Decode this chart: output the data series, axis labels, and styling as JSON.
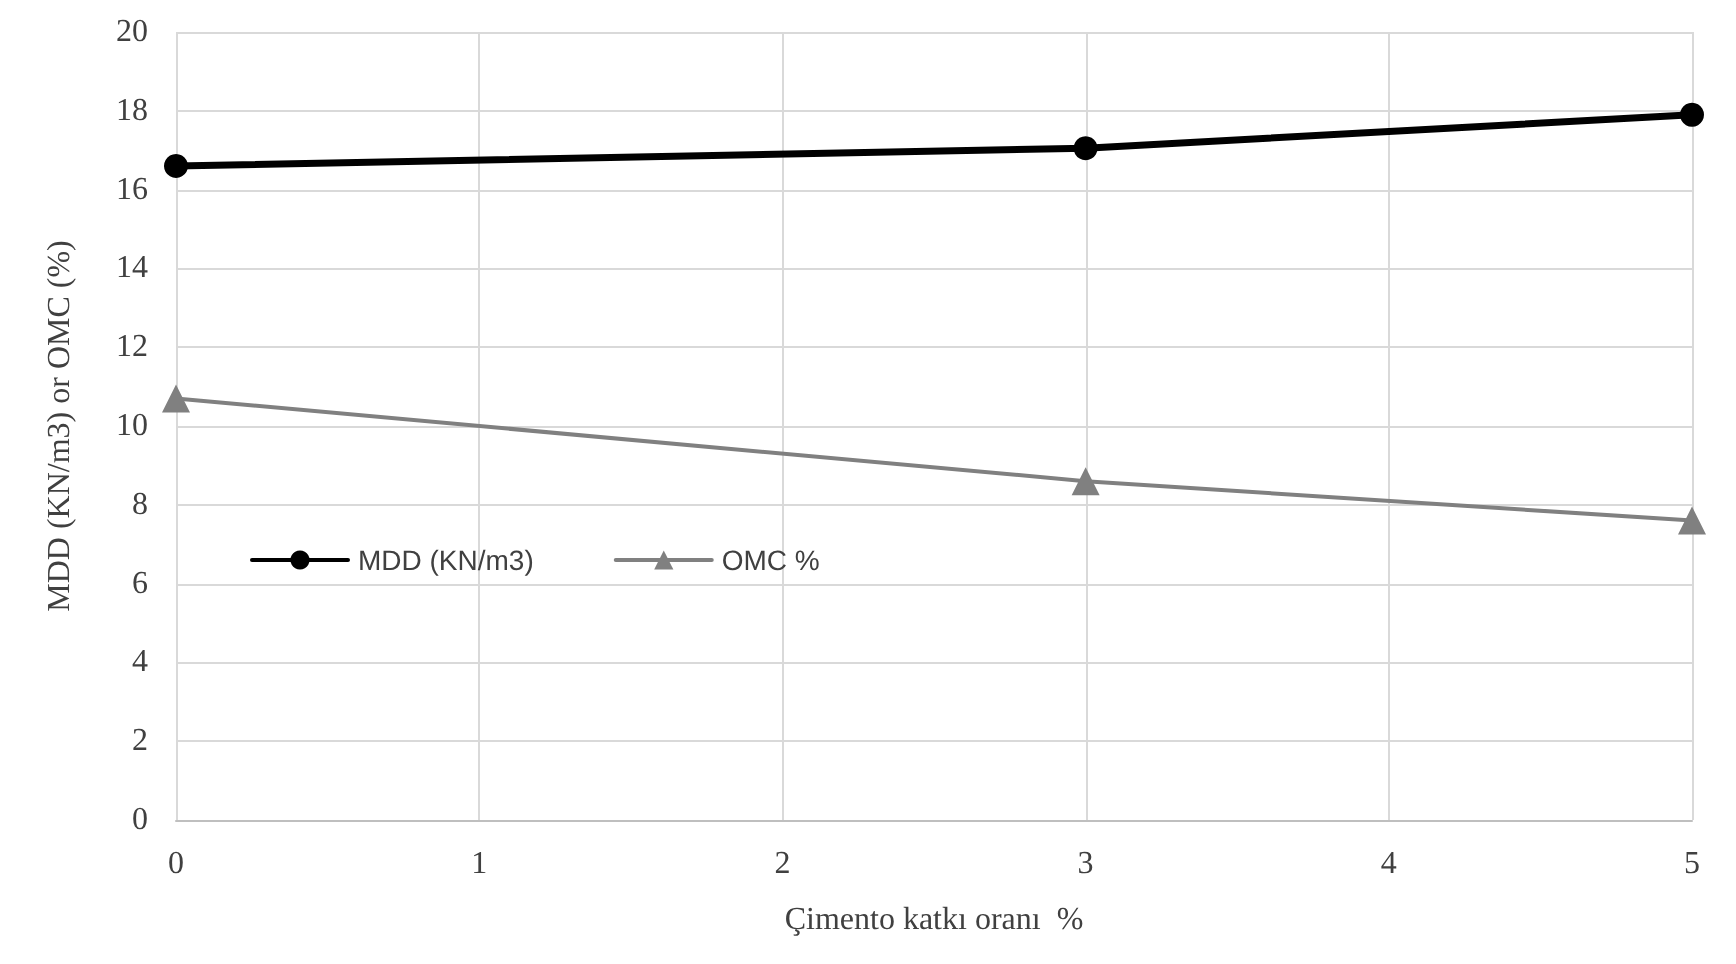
{
  "chart_data": {
    "type": "line",
    "xlabel": "Çimento katkı oranı  %",
    "ylabel": "MDD (KN/m3) or OMC (%)",
    "x": [
      0,
      3,
      5
    ],
    "series": [
      {
        "name": "MDD (KN/m3)",
        "color": "#000000",
        "marker": "circle",
        "values": [
          16.6,
          17.05,
          17.9
        ]
      },
      {
        "name": "OMC %",
        "color": "#808080",
        "marker": "triangle",
        "values": [
          10.7,
          8.6,
          7.6
        ]
      }
    ],
    "xlim": [
      0,
      5
    ],
    "xticks": [
      0,
      1,
      2,
      3,
      4,
      5
    ],
    "ylim": [
      0,
      20
    ],
    "yticks": [
      0,
      2,
      4,
      6,
      8,
      10,
      12,
      14,
      16,
      18,
      20
    ],
    "grid": true,
    "legend": "left",
    "line_style": "solid"
  }
}
